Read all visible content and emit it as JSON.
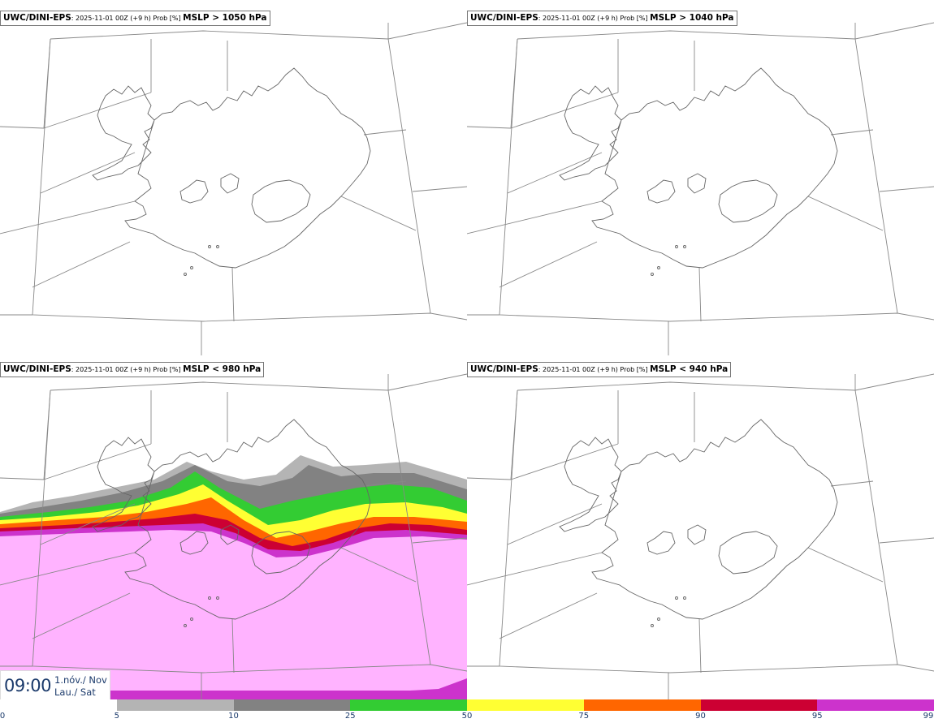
{
  "panels": [
    {
      "id": "panel-1",
      "source": "UWC/DINI-EPS",
      "meta": ": 2025-11-01 00Z (+9 h) Prob [%] ",
      "param": "MSLP > 1050 hPa",
      "filled": false
    },
    {
      "id": "panel-2",
      "source": "UWC/DINI-EPS",
      "meta": ": 2025-11-01 00Z (+9 h) Prob [%] ",
      "param": "MSLP > 1040 hPa",
      "filled": false
    },
    {
      "id": "panel-3",
      "source": "UWC/DINI-EPS",
      "meta": ": 2025-11-01 00Z (+9 h) Prob [%] ",
      "param": "MSLP < 980 hPa",
      "filled": true
    },
    {
      "id": "panel-4",
      "source": "UWC/DINI-EPS",
      "meta": ": 2025-11-01 00Z (+9 h) Prob [%] ",
      "param": "MSLP < 940 hPa",
      "filled": false
    }
  ],
  "valid_time": {
    "time": "09:00",
    "date_line1": "1.nóv./ Nov",
    "date_line2": "Lau./ Sat"
  },
  "colorbar": {
    "labels": [
      "0",
      "5",
      "10",
      "25",
      "50",
      "75",
      "90",
      "95",
      "99"
    ],
    "colors": [
      "#ffffff",
      "#b4b4b4",
      "#828282",
      "#33cc33",
      "#ffff33",
      "#ff6600",
      "#cc0033",
      "#cc33cc",
      "#ffb3ff"
    ]
  },
  "colors": {
    "coast": "#666666",
    "grid": "#888888"
  }
}
